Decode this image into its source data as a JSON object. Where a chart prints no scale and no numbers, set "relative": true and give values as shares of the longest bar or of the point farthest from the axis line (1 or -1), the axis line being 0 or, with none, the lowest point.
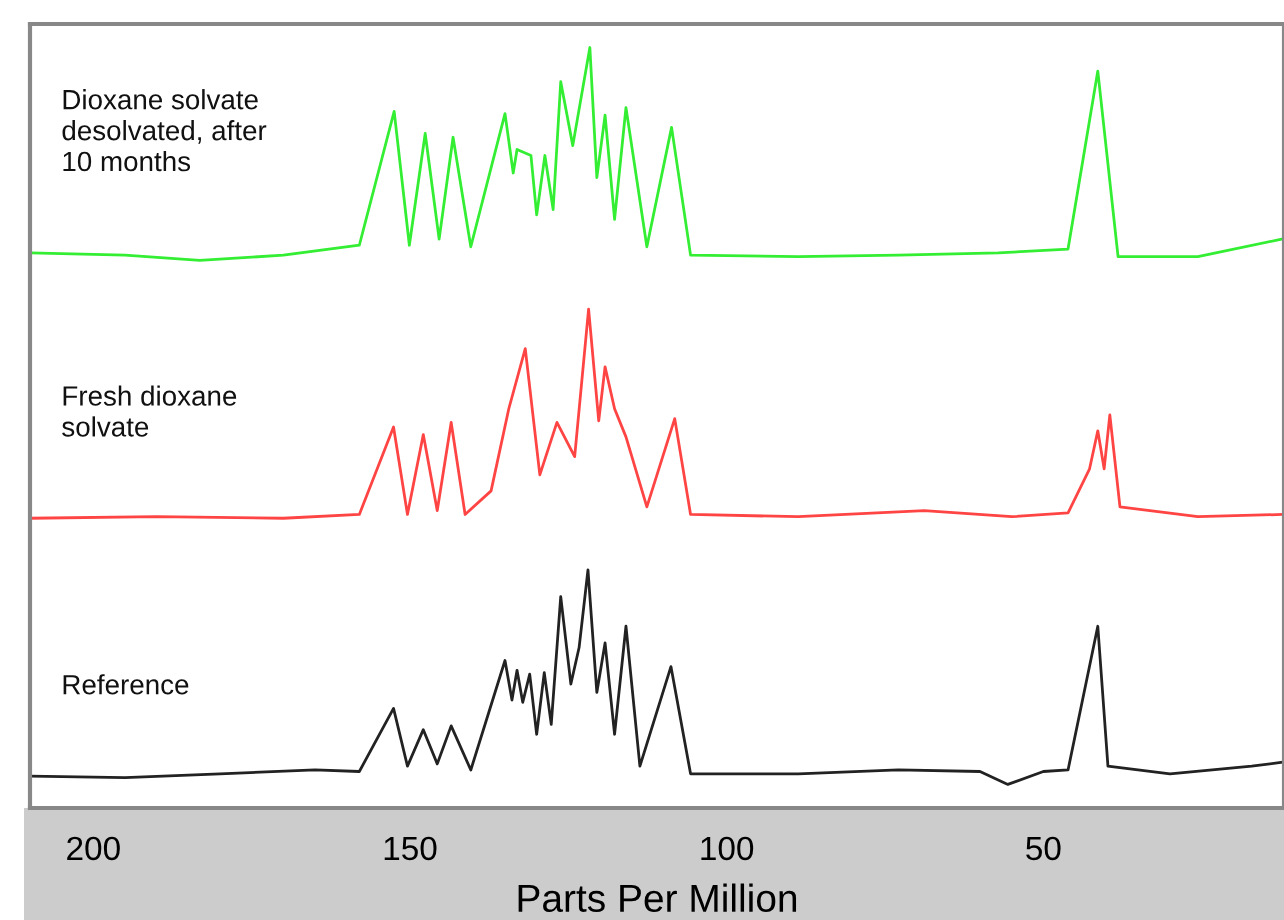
{
  "chart_data": {
    "type": "line",
    "relative": true,
    "xlabel": "Parts Per Million",
    "xlim": [
      210,
      12
    ],
    "xticks": [
      200,
      150,
      100,
      50
    ],
    "grid": false,
    "legend": false,
    "tick_labels": "x",
    "line_style": "solid",
    "marker": "none",
    "series": [
      {
        "name": "Dioxane solvate\ndesolvated, after\n10 months",
        "color": "#33ee33",
        "x": [
          210,
          195,
          183.2,
          170,
          158,
          152.5,
          150.1,
          147.6,
          145.4,
          143.2,
          140.4,
          135.0,
          133.7,
          133.1,
          130.9,
          130.0,
          128.7,
          127.4,
          126.2,
          124.3,
          121.6,
          120.5,
          119.2,
          117.7,
          115.9,
          112.6,
          108.7,
          105.7,
          88.7,
          72.9,
          57.1,
          46.1,
          41.4,
          38.2,
          25.6,
          12.4
        ],
        "values": [
          0.73,
          0.727,
          0.72,
          0.727,
          0.74,
          0.916,
          0.74,
          0.887,
          0.748,
          0.882,
          0.738,
          0.913,
          0.835,
          0.866,
          0.858,
          0.78,
          0.858,
          0.787,
          0.955,
          0.871,
          1.0,
          0.829,
          0.911,
          0.774,
          0.921,
          0.738,
          0.895,
          0.727,
          0.725,
          0.727,
          0.73,
          0.735,
          0.969,
          0.725,
          0.725,
          0.748
        ]
      },
      {
        "name": "Fresh dioxane\nsolvate",
        "color": "#ff4444",
        "x": [
          210,
          190,
          170,
          158,
          152.6,
          150.4,
          147.9,
          145.7,
          143.5,
          141.3,
          137.2,
          134.4,
          131.8,
          129.5,
          126.8,
          124.0,
          121.8,
          120.2,
          119.2,
          117.7,
          115.9,
          112.6,
          108.2,
          105.7,
          88.7,
          68.8,
          55,
          46.1,
          42.7,
          41.4,
          40.4,
          39.5,
          37.9,
          25.6,
          12.4
        ],
        "values": [
          0.381,
          0.383,
          0.381,
          0.386,
          0.501,
          0.386,
          0.491,
          0.391,
          0.507,
          0.386,
          0.417,
          0.525,
          0.604,
          0.438,
          0.507,
          0.462,
          0.656,
          0.509,
          0.58,
          0.525,
          0.488,
          0.396,
          0.512,
          0.386,
          0.383,
          0.391,
          0.383,
          0.388,
          0.446,
          0.496,
          0.446,
          0.517,
          0.396,
          0.383,
          0.386
        ]
      },
      {
        "name": "Reference",
        "color": "#222222",
        "x": [
          210,
          195,
          180,
          165,
          158,
          152.6,
          150.4,
          147.9,
          145.7,
          143.5,
          140.4,
          135.0,
          133.9,
          133.1,
          132.2,
          131.1,
          130.0,
          128.8,
          127.7,
          126.2,
          124.6,
          123.3,
          121.9,
          120.5,
          119.2,
          117.7,
          115.9,
          113.7,
          108.8,
          105.7,
          88.7,
          72.9,
          60,
          55.6,
          50,
          46.1,
          41.4,
          39.8,
          30,
          17.1,
          12.4
        ],
        "values": [
          0.042,
          0.04,
          0.045,
          0.05,
          0.048,
          0.131,
          0.055,
          0.103,
          0.058,
          0.108,
          0.05,
          0.194,
          0.142,
          0.181,
          0.139,
          0.176,
          0.097,
          0.178,
          0.11,
          0.278,
          0.163,
          0.211,
          0.313,
          0.152,
          0.217,
          0.097,
          0.239,
          0.055,
          0.186,
          0.045,
          0.045,
          0.05,
          0.048,
          0.031,
          0.048,
          0.05,
          0.239,
          0.055,
          0.045,
          0.055,
          0.06
        ]
      }
    ]
  }
}
